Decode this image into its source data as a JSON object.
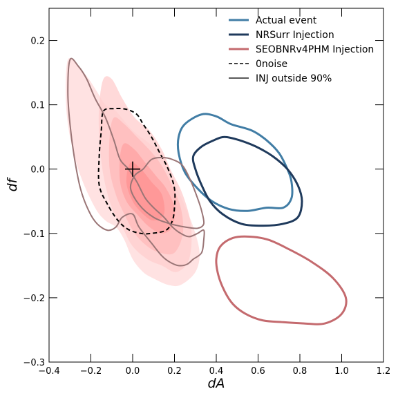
{
  "chart_data": {
    "type": "contour",
    "title": "",
    "xlabel": "dA",
    "ylabel": "df",
    "xlim": [
      -0.4,
      1.2
    ],
    "ylim": [
      -0.3,
      0.25
    ],
    "xticks": [
      -0.4,
      -0.2,
      0.0,
      0.2,
      0.4,
      0.6,
      0.8,
      1.0,
      1.2
    ],
    "yticks": [
      -0.3,
      -0.2,
      -0.1,
      0.0,
      0.1,
      0.2
    ],
    "xtick_labels": [
      "−0.4",
      "−0.2",
      "0.0",
      "0.2",
      "0.4",
      "0.6",
      "0.8",
      "1.0",
      "1.2"
    ],
    "ytick_labels": [
      "−0.3",
      "−0.2",
      "−0.1",
      "0.0",
      "0.1",
      "0.2"
    ],
    "grid": false,
    "legend_position": "top-right",
    "marker": {
      "symbol": "+",
      "x": 0.0,
      "y": 0.0,
      "color": "#000000"
    },
    "filled_regions": [
      {
        "color": "#ffdddd",
        "opacity": 0.85,
        "points": [
          [
            -0.31,
            0.17
          ],
          [
            -0.26,
            0.16
          ],
          [
            -0.21,
            0.14
          ],
          [
            -0.17,
            0.12
          ],
          [
            -0.13,
            0.1
          ],
          [
            -0.08,
            0.09
          ],
          [
            0.0,
            0.06
          ],
          [
            0.08,
            0.04
          ],
          [
            0.15,
            0.02
          ],
          [
            0.2,
            -0.02
          ],
          [
            0.24,
            -0.05
          ],
          [
            0.29,
            -0.09
          ],
          [
            0.32,
            -0.13
          ],
          [
            0.3,
            -0.16
          ],
          [
            0.23,
            -0.18
          ],
          [
            0.17,
            -0.18
          ],
          [
            0.1,
            -0.17
          ],
          [
            0.05,
            -0.16
          ],
          [
            0.0,
            -0.14
          ],
          [
            -0.04,
            -0.11
          ],
          [
            -0.08,
            -0.09
          ],
          [
            -0.13,
            -0.08
          ],
          [
            -0.18,
            -0.06
          ],
          [
            -0.25,
            -0.01
          ],
          [
            -0.3,
            0.05
          ],
          [
            -0.32,
            0.11
          ]
        ]
      },
      {
        "color": "#ffd0d0",
        "opacity": 0.8,
        "points": [
          [
            -0.14,
            0.14
          ],
          [
            -0.1,
            0.14
          ],
          [
            -0.05,
            0.11
          ],
          [
            0.01,
            0.08
          ],
          [
            0.08,
            0.06
          ],
          [
            0.14,
            0.03
          ],
          [
            0.18,
            0.0
          ],
          [
            0.24,
            -0.04
          ],
          [
            0.28,
            -0.09
          ],
          [
            0.27,
            -0.14
          ],
          [
            0.21,
            -0.16
          ],
          [
            0.14,
            -0.15
          ],
          [
            0.07,
            -0.14
          ],
          [
            0.0,
            -0.12
          ],
          [
            -0.05,
            -0.09
          ],
          [
            -0.1,
            -0.06
          ],
          [
            -0.14,
            -0.01
          ],
          [
            -0.16,
            0.05
          ],
          [
            -0.16,
            0.1
          ]
        ]
      },
      {
        "color": "#ffbcbc",
        "opacity": 0.8,
        "points": [
          [
            -0.09,
            0.08
          ],
          [
            -0.04,
            0.07
          ],
          [
            0.02,
            0.05
          ],
          [
            0.08,
            0.03
          ],
          [
            0.13,
            0.01
          ],
          [
            0.18,
            -0.02
          ],
          [
            0.23,
            -0.06
          ],
          [
            0.24,
            -0.1
          ],
          [
            0.2,
            -0.13
          ],
          [
            0.13,
            -0.13
          ],
          [
            0.07,
            -0.12
          ],
          [
            0.01,
            -0.1
          ],
          [
            -0.04,
            -0.07
          ],
          [
            -0.08,
            -0.04
          ],
          [
            -0.11,
            0.0
          ],
          [
            -0.11,
            0.05
          ]
        ]
      },
      {
        "color": "#ffa3a3",
        "opacity": 0.75,
        "points": [
          [
            -0.04,
            0.04
          ],
          [
            0.01,
            0.03
          ],
          [
            0.06,
            0.01
          ],
          [
            0.11,
            -0.01
          ],
          [
            0.16,
            -0.03
          ],
          [
            0.2,
            -0.06
          ],
          [
            0.19,
            -0.09
          ],
          [
            0.14,
            -0.1
          ],
          [
            0.08,
            -0.09
          ],
          [
            0.02,
            -0.07
          ],
          [
            -0.03,
            -0.05
          ],
          [
            -0.06,
            -0.02
          ],
          [
            -0.06,
            0.02
          ]
        ]
      },
      {
        "color": "#ff9090",
        "opacity": 0.7,
        "points": [
          [
            -0.01,
            0.01
          ],
          [
            0.04,
            0.0
          ],
          [
            0.09,
            -0.02
          ],
          [
            0.14,
            -0.04
          ],
          [
            0.15,
            -0.07
          ],
          [
            0.1,
            -0.08
          ],
          [
            0.05,
            -0.07
          ],
          [
            0.0,
            -0.05
          ],
          [
            -0.03,
            -0.02
          ]
        ]
      }
    ],
    "contours": [
      {
        "name": "Actual event",
        "color": "#417da5",
        "width": 3,
        "dash": "solid",
        "points": [
          [
            0.25,
            0.07
          ],
          [
            0.33,
            0.085
          ],
          [
            0.4,
            0.082
          ],
          [
            0.47,
            0.07
          ],
          [
            0.57,
            0.06
          ],
          [
            0.64,
            0.045
          ],
          [
            0.7,
            0.025
          ],
          [
            0.74,
            0.0
          ],
          [
            0.76,
            -0.02
          ],
          [
            0.76,
            -0.045
          ],
          [
            0.72,
            -0.06
          ],
          [
            0.64,
            -0.06
          ],
          [
            0.55,
            -0.065
          ],
          [
            0.46,
            -0.062
          ],
          [
            0.38,
            -0.05
          ],
          [
            0.31,
            -0.03
          ],
          [
            0.25,
            -0.005
          ],
          [
            0.22,
            0.025
          ],
          [
            0.22,
            0.05
          ]
        ]
      },
      {
        "name": "NRSurr Injection",
        "color": "#1f3a5c",
        "width": 3,
        "dash": "solid",
        "points": [
          [
            0.33,
            0.035
          ],
          [
            0.39,
            0.045
          ],
          [
            0.44,
            0.05
          ],
          [
            0.51,
            0.045
          ],
          [
            0.59,
            0.035
          ],
          [
            0.67,
            0.02
          ],
          [
            0.74,
            0.0
          ],
          [
            0.79,
            -0.025
          ],
          [
            0.81,
            -0.05
          ],
          [
            0.79,
            -0.075
          ],
          [
            0.72,
            -0.085
          ],
          [
            0.62,
            -0.088
          ],
          [
            0.52,
            -0.085
          ],
          [
            0.43,
            -0.07
          ],
          [
            0.37,
            -0.05
          ],
          [
            0.33,
            -0.025
          ],
          [
            0.3,
            0.0
          ],
          [
            0.29,
            0.02
          ]
        ]
      },
      {
        "name": "SEOBNRv4PHM Injection",
        "color": "#c46a6e",
        "width": 3,
        "dash": "solid",
        "points": [
          [
            0.42,
            -0.12
          ],
          [
            0.48,
            -0.107
          ],
          [
            0.56,
            -0.105
          ],
          [
            0.65,
            -0.11
          ],
          [
            0.75,
            -0.125
          ],
          [
            0.86,
            -0.145
          ],
          [
            0.96,
            -0.17
          ],
          [
            1.02,
            -0.2
          ],
          [
            1.0,
            -0.225
          ],
          [
            0.92,
            -0.24
          ],
          [
            0.82,
            -0.24
          ],
          [
            0.72,
            -0.238
          ],
          [
            0.62,
            -0.235
          ],
          [
            0.54,
            -0.225
          ],
          [
            0.48,
            -0.21
          ],
          [
            0.44,
            -0.19
          ],
          [
            0.41,
            -0.165
          ],
          [
            0.4,
            -0.14
          ]
        ]
      },
      {
        "name": "0noise",
        "color": "#000000",
        "width": 2,
        "dash": "dashed",
        "points": [
          [
            -0.14,
            0.09
          ],
          [
            -0.09,
            0.094
          ],
          [
            -0.03,
            0.093
          ],
          [
            0.02,
            0.085
          ],
          [
            0.05,
            0.07
          ],
          [
            0.09,
            0.05
          ],
          [
            0.13,
            0.025
          ],
          [
            0.17,
            0.0
          ],
          [
            0.2,
            -0.03
          ],
          [
            0.2,
            -0.06
          ],
          [
            0.19,
            -0.08
          ],
          [
            0.16,
            -0.095
          ],
          [
            0.09,
            -0.1
          ],
          [
            0.04,
            -0.1
          ],
          [
            -0.02,
            -0.094
          ],
          [
            -0.07,
            -0.08
          ],
          [
            -0.12,
            -0.055
          ],
          [
            -0.16,
            -0.025
          ],
          [
            -0.16,
            0.02
          ],
          [
            -0.15,
            0.06
          ]
        ]
      },
      {
        "name": "INJ outside 90%",
        "color": "#9a7576",
        "width": 2,
        "dash": "solid",
        "points": [
          [
            -0.3,
            0.17
          ],
          [
            -0.26,
            0.16
          ],
          [
            -0.22,
            0.14
          ],
          [
            -0.18,
            0.11
          ],
          [
            -0.13,
            0.08
          ],
          [
            -0.09,
            0.045
          ],
          [
            -0.06,
            0.015
          ],
          [
            -0.02,
            0.0
          ],
          [
            0.02,
            -0.02
          ],
          [
            0.06,
            -0.045
          ],
          [
            0.1,
            -0.06
          ],
          [
            0.15,
            -0.075
          ],
          [
            0.19,
            -0.09
          ],
          [
            0.23,
            -0.1
          ],
          [
            0.27,
            -0.105
          ],
          [
            0.31,
            -0.1
          ],
          [
            0.34,
            -0.095
          ],
          [
            0.34,
            -0.11
          ],
          [
            0.33,
            -0.13
          ],
          [
            0.29,
            -0.14
          ],
          [
            0.26,
            -0.148
          ],
          [
            0.22,
            -0.15
          ],
          [
            0.18,
            -0.145
          ],
          [
            0.14,
            -0.135
          ],
          [
            0.09,
            -0.115
          ],
          [
            0.03,
            -0.09
          ],
          [
            0.0,
            -0.07
          ],
          [
            -0.05,
            -0.075
          ],
          [
            -0.08,
            -0.09
          ],
          [
            -0.12,
            -0.095
          ],
          [
            -0.17,
            -0.085
          ],
          [
            -0.21,
            -0.065
          ],
          [
            -0.25,
            -0.03
          ],
          [
            -0.28,
            0.02
          ],
          [
            -0.3,
            0.07
          ],
          [
            -0.31,
            0.12
          ]
        ]
      },
      {
        "name": "INJ outside 90% (2)",
        "color": "#9a7576",
        "width": 2,
        "dash": "solid",
        "points": [
          [
            0.05,
            0.0
          ],
          [
            0.09,
            0.015
          ],
          [
            0.14,
            0.018
          ],
          [
            0.19,
            0.015
          ],
          [
            0.24,
            0.005
          ],
          [
            0.28,
            -0.02
          ],
          [
            0.31,
            -0.045
          ],
          [
            0.33,
            -0.065
          ],
          [
            0.34,
            -0.085
          ],
          [
            0.31,
            -0.092
          ],
          [
            0.25,
            -0.09
          ],
          [
            0.18,
            -0.085
          ],
          [
            0.1,
            -0.075
          ],
          [
            0.03,
            -0.055
          ],
          [
            -0.01,
            -0.03
          ],
          [
            0.01,
            -0.01
          ]
        ]
      }
    ],
    "legend": [
      {
        "label": "Actual event",
        "color": "#417da5",
        "style": "solid-thick"
      },
      {
        "label": "NRSurr Injection",
        "color": "#1f3a5c",
        "style": "solid-thick"
      },
      {
        "label": "SEOBNRv4PHM Injection",
        "color": "#c46a6e",
        "style": "solid-thick"
      },
      {
        "label": "0noise",
        "color": "#000000",
        "style": "dashed"
      },
      {
        "label": "INJ outside 90%",
        "color": "#222222",
        "style": "solid-thin"
      }
    ]
  }
}
